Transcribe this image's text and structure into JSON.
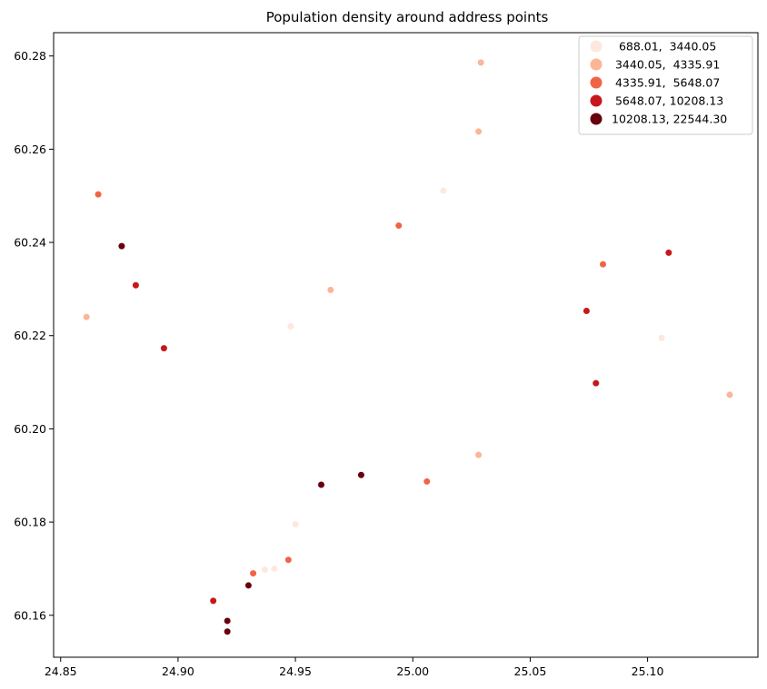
{
  "chart_data": {
    "type": "scatter",
    "title": "Population density around address points",
    "xlabel": "",
    "ylabel": "",
    "xlim": [
      24.847,
      25.147
    ],
    "ylim": [
      60.151,
      60.285
    ],
    "x_ticks": [
      24.85,
      24.9,
      24.95,
      25.0,
      25.05,
      25.1
    ],
    "x_tick_labels": [
      "24.85",
      "24.90",
      "24.95",
      "25.00",
      "25.05",
      "25.10"
    ],
    "y_ticks": [
      60.16,
      60.18,
      60.2,
      60.22,
      60.24,
      60.26,
      60.28
    ],
    "y_tick_labels": [
      "60.16",
      "60.18",
      "60.20",
      "60.22",
      "60.24",
      "60.26",
      "60.28"
    ],
    "grid": false,
    "legend_position": "top-right",
    "classes": [
      {
        "label": "  688.01,  3440.05",
        "color": "#fee8de"
      },
      {
        "label": " 3440.05,  4335.91",
        "color": "#fbb597"
      },
      {
        "label": " 4335.91,  5648.07",
        "color": "#f06446"
      },
      {
        "label": " 5648.07, 10208.13",
        "color": "#c8171c"
      },
      {
        "label": "10208.13, 22544.30",
        "color": "#67000d"
      }
    ],
    "points": [
      {
        "x": 25.029,
        "y": 60.2786,
        "class": 1
      },
      {
        "x": 25.028,
        "y": 60.2638,
        "class": 1
      },
      {
        "x": 25.013,
        "y": 60.2511,
        "class": 0
      },
      {
        "x": 24.866,
        "y": 60.2503,
        "class": 2
      },
      {
        "x": 24.994,
        "y": 60.2436,
        "class": 2
      },
      {
        "x": 24.876,
        "y": 60.2392,
        "class": 4
      },
      {
        "x": 25.109,
        "y": 60.2378,
        "class": 3
      },
      {
        "x": 25.081,
        "y": 60.2353,
        "class": 2
      },
      {
        "x": 24.882,
        "y": 60.2308,
        "class": 3
      },
      {
        "x": 24.965,
        "y": 60.2298,
        "class": 1
      },
      {
        "x": 25.074,
        "y": 60.2253,
        "class": 3
      },
      {
        "x": 24.861,
        "y": 60.224,
        "class": 1
      },
      {
        "x": 24.948,
        "y": 60.222,
        "class": 0
      },
      {
        "x": 25.106,
        "y": 60.2195,
        "class": 0
      },
      {
        "x": 24.894,
        "y": 60.2173,
        "class": 3
      },
      {
        "x": 25.078,
        "y": 60.2098,
        "class": 3
      },
      {
        "x": 25.135,
        "y": 60.2073,
        "class": 1
      },
      {
        "x": 25.028,
        "y": 60.1944,
        "class": 1
      },
      {
        "x": 24.978,
        "y": 60.1901,
        "class": 4
      },
      {
        "x": 25.006,
        "y": 60.1887,
        "class": 2
      },
      {
        "x": 24.961,
        "y": 60.188,
        "class": 4
      },
      {
        "x": 24.95,
        "y": 60.1795,
        "class": 0
      },
      {
        "x": 24.947,
        "y": 60.1719,
        "class": 2
      },
      {
        "x": 24.941,
        "y": 60.17,
        "class": 0
      },
      {
        "x": 24.937,
        "y": 60.1698,
        "class": 0
      },
      {
        "x": 24.932,
        "y": 60.169,
        "class": 2
      },
      {
        "x": 24.93,
        "y": 60.1664,
        "class": 4
      },
      {
        "x": 24.915,
        "y": 60.1631,
        "class": 3
      },
      {
        "x": 24.921,
        "y": 60.1588,
        "class": 4
      },
      {
        "x": 24.921,
        "y": 60.1565,
        "class": 4
      }
    ]
  }
}
